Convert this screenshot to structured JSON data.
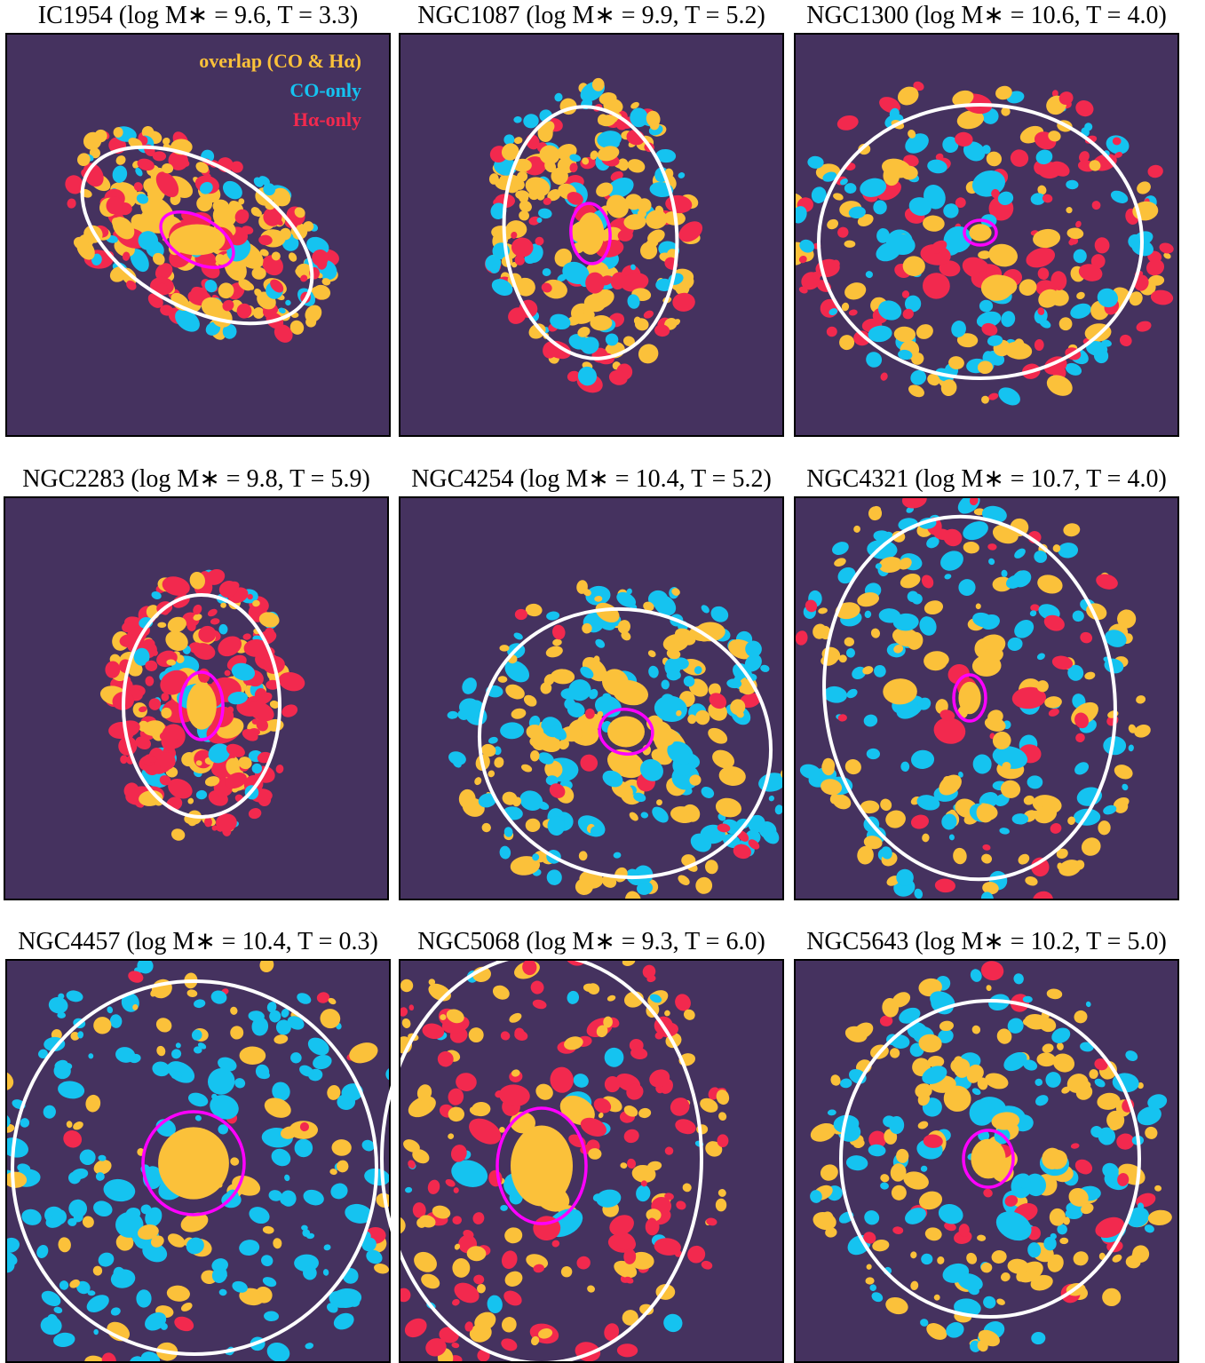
{
  "panels": [
    {
      "title": "IC1954 (log M∗ = 9.6, T = 3.3)"
    },
    {
      "title": "NGC1087 (log M∗ = 9.9, T = 5.2)"
    },
    {
      "title": "NGC1300 (log M∗ = 10.6, T = 4.0)"
    },
    {
      "title": "NGC2283 (log M∗ = 9.8, T = 5.9)"
    },
    {
      "title": "NGC4254 (log M∗ = 10.4, T = 5.2)"
    },
    {
      "title": "NGC4321 (log M∗ = 10.7, T = 4.0)"
    },
    {
      "title": "NGC4457 (log M∗ = 10.4, T = 0.3)"
    },
    {
      "title": "NGC5068 (log M∗ = 9.3, T = 6.0)"
    },
    {
      "title": "NGC5643 (log M∗ = 10.2, T = 5.0)"
    }
  ],
  "legend": {
    "overlap": "overlap (CO & Hα)",
    "co_only": "CO-only",
    "halpha_only": "Hα-only"
  }
}
